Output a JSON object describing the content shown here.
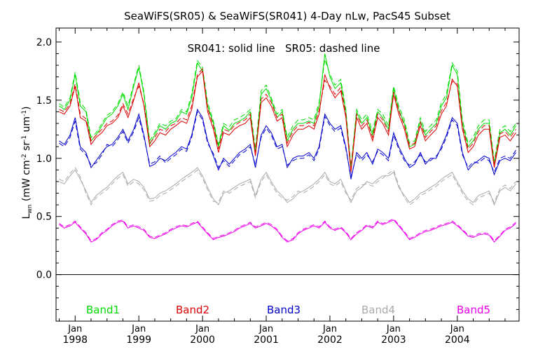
{
  "chart_data": {
    "type": "line",
    "title": "SeaWiFS(SR05) & SeaWiFS(SR041) 4-Day nLw, PacS45 Subset",
    "subtitle": "SR041: solid line   SR05: dashed line",
    "ylabel": "L_wn (mW cm^-2 sr^-1 um^-1)",
    "ylim": [
      -0.4,
      2.12
    ],
    "xlim": [
      1997.7,
      2004.97
    ],
    "y_ticks": [
      "0.0",
      "0.5",
      "1.0",
      "1.5",
      "2.0"
    ],
    "x_ticks": [
      {
        "month": "Jan",
        "year": "1998"
      },
      {
        "month": "Jan",
        "year": "1999"
      },
      {
        "month": "Jan",
        "year": "2000"
      },
      {
        "month": "Jan",
        "year": "2001"
      },
      {
        "month": "Jan",
        "year": "2002"
      },
      {
        "month": "Jan",
        "year": "2003"
      },
      {
        "month": "Jan",
        "year": "2004"
      }
    ],
    "grid": false,
    "zero_line": true,
    "legend_position": "bottom, inside plot",
    "x": [
      1997.75,
      1997.83,
      1997.92,
      1998.0,
      1998.08,
      1998.17,
      1998.25,
      1998.33,
      1998.42,
      1998.5,
      1998.58,
      1998.67,
      1998.75,
      1998.83,
      1998.92,
      1999.0,
      1999.08,
      1999.17,
      1999.25,
      1999.33,
      1999.42,
      1999.5,
      1999.58,
      1999.67,
      1999.75,
      1999.83,
      1999.92,
      2000.0,
      2000.08,
      2000.17,
      2000.25,
      2000.33,
      2000.42,
      2000.5,
      2000.58,
      2000.67,
      2000.75,
      2000.83,
      2000.92,
      2001.0,
      2001.08,
      2001.17,
      2001.25,
      2001.33,
      2001.42,
      2001.5,
      2001.58,
      2001.67,
      2001.75,
      2001.83,
      2001.92,
      2002.0,
      2002.08,
      2002.17,
      2002.25,
      2002.33,
      2002.42,
      2002.5,
      2002.58,
      2002.67,
      2002.75,
      2002.83,
      2002.92,
      2003.0,
      2003.08,
      2003.17,
      2003.25,
      2003.33,
      2003.42,
      2003.5,
      2003.58,
      2003.67,
      2003.75,
      2003.83,
      2003.92,
      2004.0,
      2004.08,
      2004.17,
      2004.25,
      2004.33,
      2004.42,
      2004.5,
      2004.58,
      2004.67,
      2004.75,
      2004.83,
      2004.92
    ],
    "series": [
      {
        "name": "Band1",
        "color": "#00dd00",
        "solid": [
          1.45,
          1.42,
          1.5,
          1.72,
          1.45,
          1.4,
          1.15,
          1.2,
          1.28,
          1.35,
          1.38,
          1.45,
          1.55,
          1.42,
          1.62,
          1.78,
          1.55,
          1.12,
          1.2,
          1.28,
          1.25,
          1.3,
          1.32,
          1.4,
          1.38,
          1.52,
          1.82,
          1.75,
          1.45,
          1.3,
          1.1,
          1.28,
          1.24,
          1.3,
          1.32,
          1.35,
          1.4,
          1.05,
          1.55,
          1.6,
          1.5,
          1.35,
          1.4,
          1.15,
          1.25,
          1.3,
          1.3,
          1.32,
          1.3,
          1.45,
          1.9,
          1.7,
          1.6,
          1.65,
          1.4,
          0.9,
          1.4,
          1.3,
          1.35,
          1.2,
          1.4,
          1.35,
          1.25,
          1.6,
          1.42,
          1.3,
          1.1,
          1.12,
          1.32,
          1.2,
          1.25,
          1.3,
          1.45,
          1.52,
          1.8,
          1.72,
          1.3,
          1.1,
          1.15,
          1.25,
          1.3,
          1.3,
          0.95,
          1.22,
          1.25,
          1.2,
          1.28
        ],
        "dashed": [
          1.47,
          1.44,
          1.52,
          1.74,
          1.48,
          1.42,
          1.18,
          1.22,
          1.3,
          1.37,
          1.4,
          1.47,
          1.57,
          1.45,
          1.64,
          1.8,
          1.57,
          1.15,
          1.22,
          1.3,
          1.28,
          1.32,
          1.34,
          1.42,
          1.4,
          1.55,
          1.84,
          1.78,
          1.48,
          1.32,
          1.12,
          1.3,
          1.27,
          1.33,
          1.35,
          1.38,
          1.42,
          1.08,
          1.58,
          1.63,
          1.52,
          1.38,
          1.42,
          1.18,
          1.28,
          1.33,
          1.33,
          1.35,
          1.33,
          1.48,
          1.85,
          1.72,
          1.63,
          1.68,
          1.42,
          0.93,
          1.42,
          1.33,
          1.38,
          1.23,
          1.42,
          1.38,
          1.28,
          1.62,
          1.45,
          1.33,
          1.13,
          1.15,
          1.35,
          1.23,
          1.28,
          1.33,
          1.48,
          1.55,
          1.82,
          1.75,
          1.33,
          1.13,
          1.18,
          1.28,
          1.33,
          1.33,
          0.98,
          1.25,
          1.28,
          1.23,
          1.3
        ]
      },
      {
        "name": "Band2",
        "color": "#dd0000",
        "solid": [
          1.4,
          1.38,
          1.45,
          1.62,
          1.35,
          1.32,
          1.12,
          1.18,
          1.22,
          1.28,
          1.3,
          1.35,
          1.45,
          1.35,
          1.5,
          1.65,
          1.45,
          1.1,
          1.15,
          1.22,
          1.2,
          1.25,
          1.28,
          1.32,
          1.3,
          1.42,
          1.7,
          1.75,
          1.4,
          1.25,
          1.05,
          1.22,
          1.2,
          1.25,
          1.28,
          1.3,
          1.35,
          1.02,
          1.48,
          1.52,
          1.45,
          1.32,
          1.35,
          1.1,
          1.2,
          1.25,
          1.25,
          1.28,
          1.25,
          1.38,
          1.72,
          1.6,
          1.52,
          1.58,
          1.35,
          0.88,
          1.35,
          1.25,
          1.3,
          1.15,
          1.35,
          1.3,
          1.2,
          1.55,
          1.38,
          1.25,
          1.08,
          1.1,
          1.28,
          1.15,
          1.2,
          1.25,
          1.38,
          1.45,
          1.68,
          1.62,
          1.25,
          1.05,
          1.1,
          1.2,
          1.25,
          1.25,
          0.92,
          1.18,
          1.2,
          1.15,
          1.22
        ],
        "dashed": [
          1.42,
          1.4,
          1.47,
          1.64,
          1.38,
          1.34,
          1.15,
          1.2,
          1.25,
          1.3,
          1.32,
          1.37,
          1.47,
          1.38,
          1.52,
          1.62,
          1.47,
          1.13,
          1.18,
          1.25,
          1.23,
          1.28,
          1.3,
          1.35,
          1.33,
          1.45,
          1.72,
          1.77,
          1.43,
          1.28,
          1.08,
          1.25,
          1.23,
          1.28,
          1.31,
          1.33,
          1.38,
          1.05,
          1.51,
          1.55,
          1.48,
          1.35,
          1.38,
          1.13,
          1.23,
          1.28,
          1.28,
          1.31,
          1.28,
          1.41,
          1.67,
          1.62,
          1.55,
          1.61,
          1.38,
          0.91,
          1.38,
          1.28,
          1.33,
          1.18,
          1.38,
          1.33,
          1.23,
          1.57,
          1.41,
          1.28,
          1.11,
          1.13,
          1.31,
          1.18,
          1.23,
          1.28,
          1.41,
          1.48,
          1.66,
          1.64,
          1.28,
          1.08,
          1.13,
          1.23,
          1.28,
          1.28,
          0.95,
          1.21,
          1.23,
          1.18,
          1.25
        ]
      },
      {
        "name": "Band3",
        "color": "#0000cc",
        "solid": [
          1.15,
          1.12,
          1.2,
          1.35,
          1.1,
          1.05,
          0.92,
          0.98,
          1.05,
          1.1,
          1.12,
          1.18,
          1.25,
          1.15,
          1.25,
          1.38,
          1.2,
          0.93,
          0.95,
          1.0,
          0.98,
          1.02,
          1.05,
          1.1,
          1.08,
          1.2,
          1.42,
          1.35,
          1.15,
          1.02,
          0.9,
          1.0,
          0.95,
          1.0,
          1.05,
          1.08,
          1.12,
          0.92,
          1.2,
          1.28,
          1.22,
          1.1,
          1.12,
          0.92,
          1.0,
          1.02,
          1.02,
          1.05,
          1.0,
          1.1,
          1.38,
          1.3,
          1.25,
          1.28,
          1.1,
          0.82,
          1.05,
          1.0,
          1.05,
          0.95,
          1.08,
          1.05,
          1.0,
          1.22,
          1.1,
          1.0,
          0.92,
          0.95,
          1.05,
          0.95,
          1.0,
          1.0,
          1.1,
          1.2,
          1.35,
          1.3,
          1.05,
          0.9,
          0.95,
          0.98,
          1.02,
          1.0,
          0.86,
          0.98,
          1.0,
          0.98,
          1.05
        ],
        "dashed": [
          1.13,
          1.1,
          1.18,
          1.32,
          1.08,
          1.03,
          0.94,
          0.96,
          1.03,
          1.12,
          1.1,
          1.16,
          1.23,
          1.13,
          1.23,
          1.35,
          1.18,
          0.95,
          0.97,
          1.02,
          0.96,
          1.0,
          1.03,
          1.08,
          1.06,
          1.18,
          1.4,
          1.33,
          1.13,
          1.04,
          0.92,
          0.98,
          0.93,
          0.98,
          1.03,
          1.06,
          1.1,
          0.94,
          1.18,
          1.26,
          1.2,
          1.08,
          1.1,
          0.94,
          0.98,
          1.0,
          1.0,
          1.03,
          0.98,
          1.08,
          1.36,
          1.28,
          1.23,
          1.26,
          1.08,
          0.84,
          1.03,
          0.98,
          1.03,
          0.97,
          1.06,
          1.03,
          0.98,
          1.2,
          1.08,
          0.98,
          0.94,
          0.97,
          1.03,
          0.97,
          0.98,
          1.02,
          1.08,
          1.18,
          1.33,
          1.28,
          1.03,
          0.92,
          0.97,
          0.96,
          1.0,
          0.98,
          0.88,
          1.0,
          1.02,
          1.0,
          1.07
        ]
      },
      {
        "name": "Band4",
        "color": "#aaaaaa",
        "solid": [
          0.8,
          0.78,
          0.85,
          0.9,
          0.82,
          0.72,
          0.62,
          0.68,
          0.72,
          0.75,
          0.8,
          0.85,
          0.88,
          0.78,
          0.82,
          0.8,
          0.75,
          0.65,
          0.66,
          0.7,
          0.72,
          0.75,
          0.78,
          0.82,
          0.85,
          0.88,
          0.92,
          0.85,
          0.75,
          0.65,
          0.6,
          0.7,
          0.72,
          0.75,
          0.78,
          0.8,
          0.82,
          0.68,
          0.82,
          0.88,
          0.8,
          0.72,
          0.68,
          0.62,
          0.65,
          0.7,
          0.72,
          0.75,
          0.78,
          0.82,
          0.88,
          0.8,
          0.78,
          0.82,
          0.72,
          0.62,
          0.72,
          0.75,
          0.8,
          0.78,
          0.82,
          0.85,
          0.85,
          0.88,
          0.75,
          0.68,
          0.62,
          0.65,
          0.7,
          0.72,
          0.75,
          0.78,
          0.82,
          0.85,
          0.88,
          0.8,
          0.72,
          0.65,
          0.62,
          0.68,
          0.7,
          0.72,
          0.6,
          0.72,
          0.75,
          0.72,
          0.78
        ],
        "dashed": [
          0.82,
          0.8,
          0.87,
          0.92,
          0.84,
          0.7,
          0.6,
          0.66,
          0.7,
          0.73,
          0.78,
          0.83,
          0.86,
          0.76,
          0.8,
          0.78,
          0.73,
          0.63,
          0.64,
          0.68,
          0.7,
          0.73,
          0.76,
          0.8,
          0.83,
          0.86,
          0.9,
          0.83,
          0.73,
          0.63,
          0.62,
          0.72,
          0.7,
          0.73,
          0.76,
          0.78,
          0.8,
          0.66,
          0.8,
          0.86,
          0.78,
          0.7,
          0.66,
          0.64,
          0.67,
          0.72,
          0.7,
          0.73,
          0.76,
          0.8,
          0.86,
          0.78,
          0.76,
          0.8,
          0.7,
          0.64,
          0.74,
          0.77,
          0.78,
          0.76,
          0.8,
          0.83,
          0.87,
          0.9,
          0.77,
          0.66,
          0.6,
          0.63,
          0.68,
          0.7,
          0.73,
          0.76,
          0.8,
          0.83,
          0.86,
          0.78,
          0.7,
          0.63,
          0.6,
          0.66,
          0.68,
          0.7,
          0.62,
          0.74,
          0.77,
          0.74,
          0.8
        ]
      },
      {
        "name": "Band5",
        "color": "#ee00ee",
        "solid": [
          0.43,
          0.4,
          0.42,
          0.45,
          0.4,
          0.35,
          0.28,
          0.3,
          0.35,
          0.38,
          0.42,
          0.45,
          0.46,
          0.4,
          0.42,
          0.4,
          0.38,
          0.32,
          0.31,
          0.33,
          0.35,
          0.38,
          0.4,
          0.42,
          0.41,
          0.43,
          0.45,
          0.4,
          0.35,
          0.3,
          0.32,
          0.33,
          0.35,
          0.37,
          0.4,
          0.42,
          0.44,
          0.4,
          0.42,
          0.44,
          0.42,
          0.38,
          0.32,
          0.28,
          0.3,
          0.35,
          0.38,
          0.4,
          0.42,
          0.4,
          0.45,
          0.4,
          0.38,
          0.4,
          0.36,
          0.3,
          0.35,
          0.38,
          0.42,
          0.4,
          0.45,
          0.43,
          0.45,
          0.47,
          0.42,
          0.36,
          0.3,
          0.32,
          0.35,
          0.37,
          0.38,
          0.4,
          0.42,
          0.43,
          0.45,
          0.42,
          0.38,
          0.33,
          0.32,
          0.34,
          0.35,
          0.34,
          0.28,
          0.33,
          0.38,
          0.4,
          0.44
        ],
        "dashed": [
          0.44,
          0.41,
          0.43,
          0.46,
          0.41,
          0.36,
          0.29,
          0.31,
          0.36,
          0.39,
          0.43,
          0.46,
          0.47,
          0.41,
          0.43,
          0.41,
          0.39,
          0.33,
          0.32,
          0.34,
          0.36,
          0.39,
          0.41,
          0.43,
          0.42,
          0.44,
          0.46,
          0.41,
          0.36,
          0.31,
          0.33,
          0.34,
          0.36,
          0.38,
          0.41,
          0.43,
          0.45,
          0.41,
          0.43,
          0.45,
          0.43,
          0.39,
          0.33,
          0.29,
          0.31,
          0.36,
          0.39,
          0.41,
          0.43,
          0.41,
          0.46,
          0.41,
          0.39,
          0.41,
          0.37,
          0.31,
          0.36,
          0.39,
          0.43,
          0.41,
          0.46,
          0.44,
          0.46,
          0.48,
          0.43,
          0.37,
          0.31,
          0.33,
          0.36,
          0.38,
          0.39,
          0.41,
          0.43,
          0.44,
          0.46,
          0.43,
          0.39,
          0.34,
          0.33,
          0.35,
          0.36,
          0.35,
          0.29,
          0.34,
          0.39,
          0.41,
          0.45
        ]
      }
    ]
  }
}
